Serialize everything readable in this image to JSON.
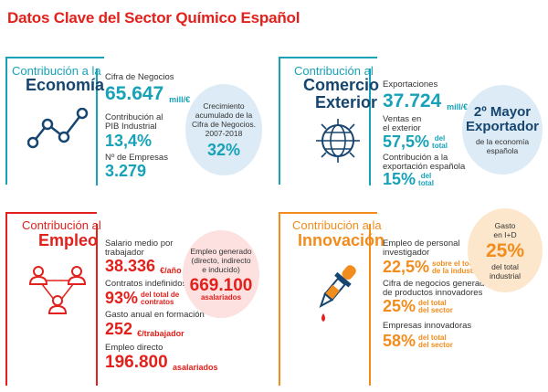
{
  "title": "Datos Clave del Sector Químico Español",
  "economia": {
    "heading_small": "Contribución a la",
    "heading_big": "Economía",
    "cifra_label": "Cifra de Negocios",
    "cifra_value": "65.647",
    "cifra_unit": "mill/€",
    "pib_label1": "Contribución al",
    "pib_label2": "PIB Industrial",
    "pib_value": "13,4%",
    "empresas_label": "Nº de Empresas",
    "empresas_value": "3.279",
    "circle_l1": "Crecimiento",
    "circle_l2": "acumulado de la",
    "circle_l3": "Cifra de Negocios.",
    "circle_l4": "2007-2018",
    "circle_value": "32%",
    "icon": "line-chart-icon"
  },
  "comercio": {
    "heading_small": "Contribución al",
    "heading_big1": "Comercio",
    "heading_big2": "Exterior",
    "export_label": "Exportaciones",
    "export_value": "37.724",
    "export_unit": "mill/€",
    "ventas_label1": "Ventas en",
    "ventas_label2": "el exterior",
    "ventas_value": "57,5%",
    "ventas_unit1": "del",
    "ventas_unit2": "total",
    "contrib_label1": "Contribución a la",
    "contrib_label2": "exportación española",
    "contrib_value": "15%",
    "contrib_unit1": "del",
    "contrib_unit2": "total",
    "circle_big1": "2º Mayor",
    "circle_big2": "Exportador",
    "circle_small1": "de la economía",
    "circle_small2": "española",
    "icon": "globe-icon"
  },
  "empleo": {
    "heading_small": "Contribución al",
    "heading_big": "Empleo",
    "salario_label1": "Salario medio por",
    "salario_label2": "trabajador",
    "salario_value": "38.336",
    "salario_unit": "€/año",
    "contratos_label": "Contratos indefinidos",
    "contratos_value": "93%",
    "contratos_unit1": "del total de",
    "contratos_unit2": "contratos",
    "gasto_label": "Gasto anual en formación",
    "gasto_value": "252",
    "gasto_unit": "€/trabajador",
    "directo_label": "Empleo directo",
    "directo_value": "196.800",
    "directo_unit": "asalariados",
    "circle_l1": "Empleo generado",
    "circle_l2": "(directo, indirecto",
    "circle_l3": "e inducido)",
    "circle_value": "669.100",
    "circle_unit": "asalariados",
    "icon": "people-network-icon"
  },
  "innovacion": {
    "heading_small": "Contribución a la",
    "heading_big": "Innovación",
    "empleo_label1": "Empleo de personal",
    "empleo_label2": "investigador",
    "empleo_value": "22,5%",
    "empleo_unit1": "sobre el total",
    "empleo_unit2": "de la industria",
    "cifra_label1": "Cifra de negocios generada a partir",
    "cifra_label2": "de productos innovadores",
    "cifra_value": "25%",
    "cifra_unit1": "del total",
    "cifra_unit2": "del sector",
    "empresas_label": "Empresas innovadoras",
    "empresas_value": "58%",
    "empresas_unit1": "del total",
    "empresas_unit2": "del sector",
    "circle_l1": "Gasto",
    "circle_l2": "en I+D",
    "circle_value": "25%",
    "circle_l3": "del total",
    "circle_l4": "industrial",
    "icon": "dropper-icon"
  },
  "colors": {
    "teal": "#17a2b8",
    "navy": "#16456f",
    "red": "#e2211c",
    "orange": "#f28c1c",
    "light_blue": "#dcebf5",
    "light_pink": "#fde0e0",
    "light_orange": "#fde7cc"
  }
}
